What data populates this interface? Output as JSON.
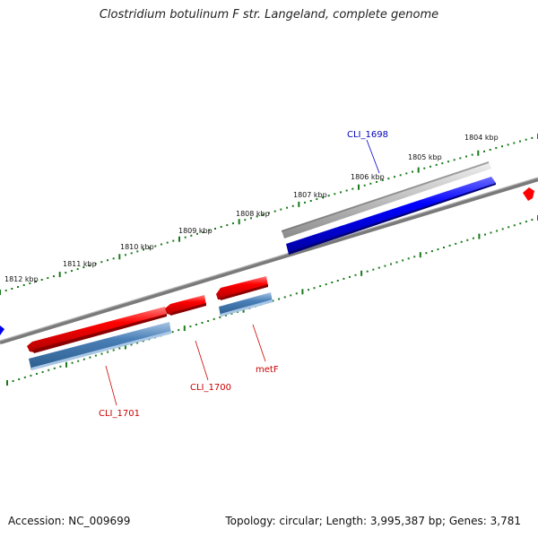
{
  "title": "Clostridium botulinum F str. Langeland, complete genome",
  "footer": {
    "accession": "Accession: NC_009699",
    "summary": "Topology: circular; Length: 3,995,387 bp; Genes: 3,781"
  },
  "ruler": {
    "labels": [
      "1812 kbp",
      "1811 kbp",
      "1810 kbp",
      "1809 kbp",
      "1808 kbp",
      "1807 kbp",
      "1806 kbp",
      "1805 kbp",
      "1804 kbp"
    ]
  },
  "genes": [
    {
      "id": "CLI_1698",
      "label": "CLI_1698",
      "color": "#0000bb",
      "strand": "forward"
    },
    {
      "id": "CLI_1700",
      "label": "CLI_1700",
      "color": "#cc0000",
      "strand": "reverse"
    },
    {
      "id": "metF",
      "label": "metF",
      "color": "#cc0000",
      "strand": "reverse"
    },
    {
      "id": "CLI_1701",
      "label": "CLI_1701",
      "color": "#cc0000",
      "strand": "reverse"
    }
  ],
  "colors": {
    "forward_cds": "#0000ff",
    "reverse_cds": "#ff0000",
    "gene_feature": "#4a80b8",
    "grey_feature": "#c8c8c8",
    "backbone": "#7a7a7a",
    "ticks": "#1a7a1a"
  }
}
